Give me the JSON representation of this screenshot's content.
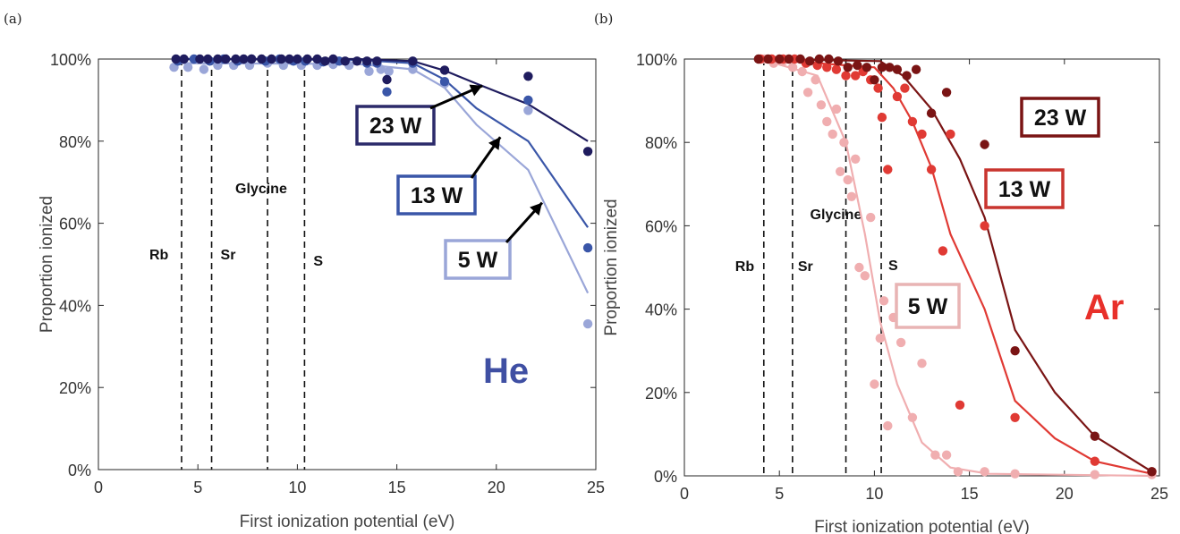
{
  "figure": {
    "panels": [
      {
        "panel_label": "(a)",
        "gas_label": "He",
        "gas_color": "#3f4fa3"
      },
      {
        "panel_label": "(b)",
        "gas_label": "Ar",
        "gas_color": "#e8302a"
      }
    ]
  },
  "chart_data": [
    {
      "type": "scatter",
      "panel": "(a)",
      "xlabel": "First ionization potential (eV)",
      "ylabel": "Proportion ionized",
      "xlim": [
        0,
        25
      ],
      "ylim": [
        0,
        100
      ],
      "x_ticks": [
        0,
        5,
        10,
        15,
        20,
        25
      ],
      "y_ticks": [
        0,
        20,
        40,
        60,
        80,
        100
      ],
      "y_tick_labels": [
        "0%",
        "20%",
        "40%",
        "60%",
        "80%",
        "100%"
      ],
      "grid": false,
      "reference_lines": [
        {
          "label": "Rb",
          "x": 4.18
        },
        {
          "label": "Sr",
          "x": 5.69
        },
        {
          "label": "Glycine",
          "x": 8.5
        },
        {
          "label": "S",
          "x": 10.36
        }
      ],
      "series": [
        {
          "name": "23 W",
          "color": "#1f1c5e",
          "points": [
            [
              3.9,
              100
            ],
            [
              4.3,
              100
            ],
            [
              5.1,
              100
            ],
            [
              5.5,
              100
            ],
            [
              6.0,
              100
            ],
            [
              6.4,
              100
            ],
            [
              6.9,
              100
            ],
            [
              7.3,
              100
            ],
            [
              7.7,
              100
            ],
            [
              8.2,
              100
            ],
            [
              8.7,
              100
            ],
            [
              9.2,
              100
            ],
            [
              9.6,
              100
            ],
            [
              10.0,
              100
            ],
            [
              10.5,
              100
            ],
            [
              11.0,
              100
            ],
            [
              11.4,
              99.5
            ],
            [
              11.8,
              100
            ],
            [
              12.4,
              99.5
            ],
            [
              13.0,
              99.5
            ],
            [
              13.5,
              99.5
            ],
            [
              14.0,
              99.5
            ],
            [
              14.5,
              95
            ],
            [
              15.8,
              99.5
            ],
            [
              17.4,
              97.3
            ],
            [
              21.6,
              95.8
            ],
            [
              24.6,
              77.5
            ]
          ],
          "fit": [
            [
              4,
              100
            ],
            [
              13,
              100
            ],
            [
              15.8,
              99.5
            ],
            [
              17.4,
              97.2
            ],
            [
              19,
              94
            ],
            [
              21.6,
              89
            ],
            [
              24.6,
              80
            ]
          ]
        },
        {
          "name": "13 W",
          "color": "#3a56a8",
          "points": [
            [
              4.0,
              99.5
            ],
            [
              4.8,
              100
            ],
            [
              5.6,
              99.5
            ],
            [
              6.3,
              100
            ],
            [
              7.0,
              99.5
            ],
            [
              7.7,
              100
            ],
            [
              8.4,
              99.5
            ],
            [
              9.1,
              100
            ],
            [
              9.8,
              99.5
            ],
            [
              10.4,
              99.5
            ],
            [
              11.3,
              99.3
            ],
            [
              12.1,
              99.5
            ],
            [
              13.5,
              99
            ],
            [
              14.0,
              99
            ],
            [
              14.5,
              92
            ],
            [
              15.8,
              99
            ],
            [
              17.4,
              94.5
            ],
            [
              21.6,
              90
            ],
            [
              24.6,
              54
            ]
          ],
          "fit": [
            [
              4,
              100
            ],
            [
              13,
              99.8
            ],
            [
              15.8,
              99
            ],
            [
              17.4,
              95
            ],
            [
              19,
              88
            ],
            [
              21.6,
              80
            ],
            [
              24.6,
              59
            ]
          ]
        },
        {
          "name": "5 W",
          "color": "#9aa6d8",
          "points": [
            [
              3.8,
              98
            ],
            [
              4.5,
              98
            ],
            [
              5.3,
              97.5
            ],
            [
              6.0,
              98.5
            ],
            [
              6.8,
              98.5
            ],
            [
              7.6,
              98.5
            ],
            [
              8.5,
              99
            ],
            [
              9.3,
              98.5
            ],
            [
              10.2,
              98.5
            ],
            [
              11.0,
              98.5
            ],
            [
              11.8,
              98.7
            ],
            [
              12.6,
              98.5
            ],
            [
              13.6,
              97
            ],
            [
              14.2,
              97.5
            ],
            [
              14.6,
              97
            ],
            [
              15.8,
              97.5
            ],
            [
              17.4,
              94
            ],
            [
              21.6,
              87.5
            ],
            [
              24.6,
              35.5
            ]
          ],
          "fit": [
            [
              4,
              99
            ],
            [
              13,
              98.8
            ],
            [
              15.8,
              97.5
            ],
            [
              17.4,
              93
            ],
            [
              19,
              84
            ],
            [
              21.6,
              73
            ],
            [
              24.6,
              43
            ]
          ]
        }
      ],
      "annotations": [
        {
          "text": "23 W",
          "box_color": "#2c2a6a",
          "arrow_to": [
            19.3,
            93.5
          ]
        },
        {
          "text": "13 W",
          "box_color": "#3a56a8",
          "arrow_to": [
            20.2,
            81
          ]
        },
        {
          "text": "5 W",
          "box_color": "#9aa6d8",
          "arrow_to": [
            22.3,
            65
          ]
        }
      ]
    },
    {
      "type": "scatter",
      "panel": "(b)",
      "xlabel": "First ionization potential (eV)",
      "ylabel": "Proportion ionized",
      "xlim": [
        0,
        25
      ],
      "ylim": [
        0,
        100
      ],
      "x_ticks": [
        0,
        5,
        10,
        15,
        20,
        25
      ],
      "y_ticks": [
        0,
        20,
        40,
        60,
        80,
        100
      ],
      "y_tick_labels": [
        "0%",
        "20%",
        "40%",
        "60%",
        "80%",
        "100%"
      ],
      "grid": false,
      "reference_lines": [
        {
          "label": "Rb",
          "x": 4.18
        },
        {
          "label": "Sr",
          "x": 5.69
        },
        {
          "label": "Glycine",
          "x": 8.5
        },
        {
          "label": "S",
          "x": 10.36
        }
      ],
      "series": [
        {
          "name": "23 W",
          "color": "#7a1414",
          "points": [
            [
              3.9,
              100
            ],
            [
              4.4,
              100
            ],
            [
              5.0,
              100
            ],
            [
              5.5,
              100
            ],
            [
              6.1,
              100
            ],
            [
              6.6,
              99.5
            ],
            [
              7.1,
              100
            ],
            [
              7.6,
              100
            ],
            [
              8.1,
              99.5
            ],
            [
              8.6,
              98
            ],
            [
              9.1,
              98.5
            ],
            [
              9.6,
              98
            ],
            [
              10.0,
              95
            ],
            [
              10.4,
              98
            ],
            [
              10.8,
              98
            ],
            [
              11.2,
              97.5
            ],
            [
              11.7,
              96
            ],
            [
              12.2,
              97.5
            ],
            [
              13.0,
              87
            ],
            [
              13.8,
              92
            ],
            [
              15.8,
              79.5
            ],
            [
              17.4,
              30
            ],
            [
              21.6,
              9.5
            ],
            [
              24.6,
              1
            ]
          ],
          "fit": [
            [
              4,
              100
            ],
            [
              10.3,
              99.5
            ],
            [
              11.5,
              96
            ],
            [
              13,
              88
            ],
            [
              14.5,
              76
            ],
            [
              15.8,
              62
            ],
            [
              17.4,
              35
            ],
            [
              19.5,
              20
            ],
            [
              21.6,
              9.5
            ],
            [
              24.6,
              1
            ]
          ]
        },
        {
          "name": "13 W",
          "color": "#e03a34",
          "points": [
            [
              4.0,
              100
            ],
            [
              4.6,
              100
            ],
            [
              5.2,
              100
            ],
            [
              5.8,
              100
            ],
            [
              6.4,
              99
            ],
            [
              7.0,
              98.5
            ],
            [
              7.5,
              98
            ],
            [
              8.0,
              97.5
            ],
            [
              8.5,
              96
            ],
            [
              9.0,
              96
            ],
            [
              9.4,
              97
            ],
            [
              9.8,
              95
            ],
            [
              10.2,
              93
            ],
            [
              10.4,
              86
            ],
            [
              10.7,
              73.5
            ],
            [
              11.2,
              91
            ],
            [
              11.6,
              93
            ],
            [
              12.0,
              85
            ],
            [
              12.5,
              82
            ],
            [
              13.0,
              73.5
            ],
            [
              13.6,
              54
            ],
            [
              14.0,
              82
            ],
            [
              14.5,
              17
            ],
            [
              15.8,
              60
            ],
            [
              17.4,
              14
            ],
            [
              21.6,
              3.5
            ],
            [
              24.6,
              1
            ]
          ],
          "fit": [
            [
              4,
              100
            ],
            [
              10.0,
              98
            ],
            [
              11,
              93
            ],
            [
              12,
              85
            ],
            [
              13,
              74
            ],
            [
              14,
              58
            ],
            [
              15.8,
              40
            ],
            [
              17.4,
              18
            ],
            [
              19.5,
              9
            ],
            [
              21.6,
              3.5
            ],
            [
              24.6,
              0.5
            ]
          ]
        },
        {
          "name": "5 W",
          "color": "#f0aeb0",
          "points": [
            [
              4.2,
              100
            ],
            [
              4.7,
              99
            ],
            [
              5.2,
              99.5
            ],
            [
              5.7,
              98
            ],
            [
              6.2,
              97
            ],
            [
              6.5,
              92
            ],
            [
              6.9,
              95
            ],
            [
              7.2,
              89
            ],
            [
              7.5,
              85
            ],
            [
              7.8,
              82
            ],
            [
              8.0,
              88
            ],
            [
              8.2,
              73
            ],
            [
              8.4,
              80
            ],
            [
              8.6,
              71
            ],
            [
              8.8,
              67
            ],
            [
              9.0,
              76
            ],
            [
              9.2,
              50
            ],
            [
              9.5,
              48
            ],
            [
              9.8,
              62
            ],
            [
              10.0,
              22
            ],
            [
              10.3,
              33
            ],
            [
              10.5,
              42
            ],
            [
              10.7,
              12
            ],
            [
              11.0,
              38
            ],
            [
              11.4,
              32
            ],
            [
              12.0,
              14
            ],
            [
              12.5,
              27
            ],
            [
              13.2,
              5
            ],
            [
              13.8,
              5
            ],
            [
              14.4,
              1
            ],
            [
              15.8,
              1
            ],
            [
              17.4,
              0.5
            ],
            [
              21.6,
              0.3
            ],
            [
              24.6,
              0.3
            ]
          ],
          "fit": [
            [
              4,
              100
            ],
            [
              7,
              96
            ],
            [
              8.5,
              80
            ],
            [
              9.5,
              58
            ],
            [
              10.3,
              37
            ],
            [
              11.2,
              22
            ],
            [
              12.5,
              8
            ],
            [
              14,
              2
            ],
            [
              16,
              0.5
            ],
            [
              24.6,
              0
            ]
          ]
        }
      ],
      "annotations": [
        {
          "text": "23 W",
          "box_color": "#7a1414"
        },
        {
          "text": "13 W",
          "box_color": "#c9352f"
        },
        {
          "text": "5 W",
          "box_color": "#e8b4b4"
        }
      ]
    }
  ]
}
